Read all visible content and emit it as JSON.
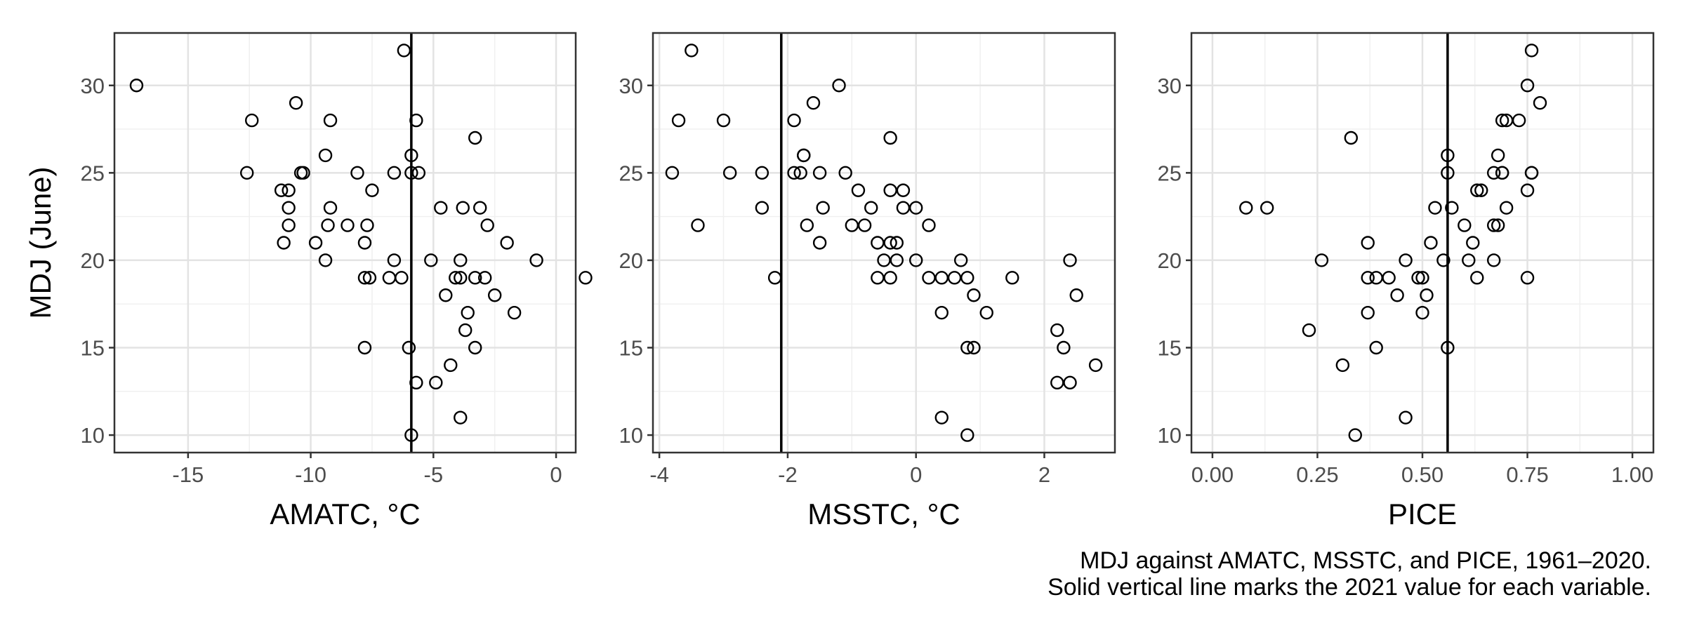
{
  "chart_data": [
    {
      "type": "scatter",
      "xlabel": "AMATC, °C",
      "ylabel": "MDJ (June)",
      "xlim": [
        -18,
        0.8
      ],
      "ylim": [
        9,
        33
      ],
      "xticks": [
        -15,
        -10,
        -5,
        0
      ],
      "xtick_labels": [
        "-15",
        "-10",
        "-5",
        "0"
      ],
      "yticks": [
        10,
        15,
        20,
        25,
        30
      ],
      "ytick_labels": [
        "10",
        "15",
        "20",
        "25",
        "30"
      ],
      "vline": -5.9,
      "grid": true,
      "points": [
        [
          -17.1,
          30
        ],
        [
          -12.4,
          28
        ],
        [
          -10.6,
          29
        ],
        [
          -9.2,
          28
        ],
        [
          -6.2,
          32
        ],
        [
          -5.7,
          28
        ],
        [
          -3.3,
          27
        ],
        [
          -12.6,
          25
        ],
        [
          -10.4,
          25
        ],
        [
          -10.3,
          25
        ],
        [
          -9.4,
          26
        ],
        [
          -8.1,
          25
        ],
        [
          -6.6,
          25
        ],
        [
          -5.9,
          26
        ],
        [
          -5.9,
          25
        ],
        [
          -5.6,
          25
        ],
        [
          -11.2,
          24
        ],
        [
          -10.9,
          24
        ],
        [
          -10.9,
          23
        ],
        [
          -10.9,
          22
        ],
        [
          -9.2,
          23
        ],
        [
          -9.3,
          22
        ],
        [
          -8.5,
          22
        ],
        [
          -7.7,
          22
        ],
        [
          -7.5,
          24
        ],
        [
          -11.1,
          21
        ],
        [
          -9.8,
          21
        ],
        [
          -9.4,
          20
        ],
        [
          -7.8,
          21
        ],
        [
          -6.6,
          20
        ],
        [
          -5.1,
          20
        ],
        [
          -4.7,
          23
        ],
        [
          -3.8,
          23
        ],
        [
          -3.1,
          23
        ],
        [
          -2.8,
          22
        ],
        [
          -2.0,
          21
        ],
        [
          -0.8,
          20
        ],
        [
          1.2,
          19
        ],
        [
          -7.8,
          19
        ],
        [
          -7.6,
          19
        ],
        [
          -6.8,
          19
        ],
        [
          -6.3,
          19
        ],
        [
          -3.9,
          20
        ],
        [
          -4.1,
          19
        ],
        [
          -3.9,
          19
        ],
        [
          -3.3,
          19
        ],
        [
          -2.9,
          19
        ],
        [
          -4.5,
          18
        ],
        [
          -2.5,
          18
        ],
        [
          -1.7,
          17
        ],
        [
          -3.6,
          17
        ],
        [
          -3.7,
          16
        ],
        [
          -3.3,
          15
        ],
        [
          -6.0,
          15
        ],
        [
          -7.8,
          15
        ],
        [
          -4.3,
          14
        ],
        [
          -5.7,
          13
        ],
        [
          -4.9,
          13
        ],
        [
          -3.9,
          11
        ],
        [
          -5.9,
          10
        ]
      ]
    },
    {
      "type": "scatter",
      "xlabel": "MSSTC, °C",
      "ylabel": "",
      "xlim": [
        -4.1,
        3.1
      ],
      "ylim": [
        9,
        33
      ],
      "xticks": [
        -4,
        -2,
        0,
        2
      ],
      "xtick_labels": [
        "-4",
        "-2",
        "0",
        "2"
      ],
      "yticks": [
        10,
        15,
        20,
        25,
        30
      ],
      "ytick_labels": [
        "10",
        "15",
        "20",
        "25",
        "30"
      ],
      "vline": -2.1,
      "grid": true,
      "points": [
        [
          -3.5,
          32
        ],
        [
          -1.2,
          30
        ],
        [
          -3.7,
          28
        ],
        [
          -3.0,
          28
        ],
        [
          -1.9,
          28
        ],
        [
          -1.6,
          29
        ],
        [
          -0.4,
          27
        ],
        [
          -1.75,
          26
        ],
        [
          -1.75,
          26
        ],
        [
          -3.8,
          25
        ],
        [
          -2.9,
          25
        ],
        [
          -2.4,
          25
        ],
        [
          -1.9,
          25
        ],
        [
          -1.8,
          25
        ],
        [
          -1.5,
          25
        ],
        [
          -1.1,
          25
        ],
        [
          -2.4,
          23
        ],
        [
          -1.45,
          23
        ],
        [
          -0.9,
          24
        ],
        [
          -0.4,
          24
        ],
        [
          -0.2,
          24
        ],
        [
          -0.7,
          23
        ],
        [
          -0.2,
          23
        ],
        [
          0.0,
          23
        ],
        [
          -3.4,
          22
        ],
        [
          -1.7,
          22
        ],
        [
          -1.0,
          22
        ],
        [
          -0.8,
          22
        ],
        [
          0.2,
          22
        ],
        [
          -1.5,
          21
        ],
        [
          -0.6,
          21
        ],
        [
          -0.4,
          21
        ],
        [
          -0.3,
          21
        ],
        [
          -0.5,
          20
        ],
        [
          -0.3,
          20
        ],
        [
          0.0,
          20
        ],
        [
          0.7,
          20
        ],
        [
          2.4,
          20
        ],
        [
          -2.2,
          19
        ],
        [
          -0.6,
          19
        ],
        [
          -0.4,
          19
        ],
        [
          0.2,
          19
        ],
        [
          0.4,
          19
        ],
        [
          0.6,
          19
        ],
        [
          0.8,
          19
        ],
        [
          1.5,
          19
        ],
        [
          0.9,
          18
        ],
        [
          2.5,
          18
        ],
        [
          0.4,
          17
        ],
        [
          1.1,
          17
        ],
        [
          2.2,
          16
        ],
        [
          0.8,
          15
        ],
        [
          0.9,
          15
        ],
        [
          2.3,
          15
        ],
        [
          2.8,
          14
        ],
        [
          2.2,
          13
        ],
        [
          2.4,
          13
        ],
        [
          0.4,
          11
        ],
        [
          0.8,
          10
        ]
      ]
    },
    {
      "type": "scatter",
      "xlabel": "PICE",
      "ylabel": "",
      "xlim": [
        -0.05,
        1.05
      ],
      "ylim": [
        9,
        33
      ],
      "xticks": [
        0,
        0.25,
        0.5,
        0.75,
        1.0
      ],
      "xtick_labels": [
        "0.00",
        "0.25",
        "0.50",
        "0.75",
        "1.00"
      ],
      "yticks": [
        10,
        15,
        20,
        25,
        30
      ],
      "ytick_labels": [
        "10",
        "15",
        "20",
        "25",
        "30"
      ],
      "vline": 0.56,
      "grid": true,
      "points": [
        [
          0.76,
          32
        ],
        [
          0.75,
          30
        ],
        [
          0.78,
          29
        ],
        [
          0.69,
          28
        ],
        [
          0.7,
          28
        ],
        [
          0.73,
          28
        ],
        [
          0.33,
          27
        ],
        [
          0.56,
          26
        ],
        [
          0.68,
          26
        ],
        [
          0.56,
          25
        ],
        [
          0.67,
          25
        ],
        [
          0.69,
          25
        ],
        [
          0.69,
          25
        ],
        [
          0.76,
          25
        ],
        [
          0.76,
          25
        ],
        [
          0.63,
          24
        ],
        [
          0.64,
          24
        ],
        [
          0.75,
          24
        ],
        [
          0.08,
          23
        ],
        [
          0.13,
          23
        ],
        [
          0.53,
          23
        ],
        [
          0.57,
          23
        ],
        [
          0.7,
          23
        ],
        [
          0.6,
          22
        ],
        [
          0.67,
          22
        ],
        [
          0.68,
          22
        ],
        [
          0.37,
          21
        ],
        [
          0.52,
          21
        ],
        [
          0.62,
          21
        ],
        [
          0.26,
          20
        ],
        [
          0.46,
          20
        ],
        [
          0.55,
          20
        ],
        [
          0.61,
          20
        ],
        [
          0.67,
          20
        ],
        [
          0.37,
          19
        ],
        [
          0.39,
          19
        ],
        [
          0.42,
          19
        ],
        [
          0.49,
          19
        ],
        [
          0.5,
          19
        ],
        [
          0.63,
          19
        ],
        [
          0.75,
          19
        ],
        [
          0.44,
          18
        ],
        [
          0.51,
          18
        ],
        [
          0.37,
          17
        ],
        [
          0.5,
          17
        ],
        [
          0.23,
          16
        ],
        [
          0.39,
          15
        ],
        [
          0.56,
          15
        ],
        [
          0.31,
          14
        ],
        [
          0.46,
          11
        ],
        [
          0.34,
          10
        ]
      ]
    }
  ],
  "caption": {
    "line1": "MDJ against AMATC, MSSTC, and PICE, 1961–2020.",
    "line2": "Solid vertical line marks the 2021 value for each variable."
  }
}
